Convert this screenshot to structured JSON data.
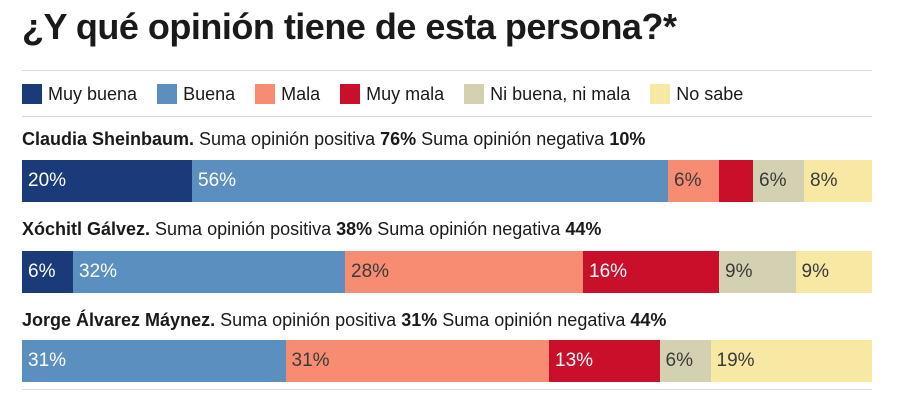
{
  "title": "¿Y qué opinión tiene de esta persona?*",
  "colors": {
    "Muy buena": "#1a3a7a",
    "Buena": "#5b8fc0",
    "Mala": "#f88c73",
    "Muy mala": "#c90f2a",
    "Ni buena, ni mala": "#d3d1b1",
    "No sabe": "#f7e8a4"
  },
  "label_colors": {
    "Muy buena": "#ffffff",
    "Buena": "#ffffff",
    "Mala": "#3a3a3a",
    "Muy mala": "#ffffff",
    "Ni buena, ni mala": "#3a3a3a",
    "No sabe": "#3a3a3a"
  },
  "chart_data": {
    "type": "bar",
    "orientation": "horizontal",
    "stacked": true,
    "title": "¿Y qué opinión tiene de esta persona?*",
    "legend": [
      "Muy buena",
      "Buena",
      "Mala",
      "Muy mala",
      "Ni buena, ni mala",
      "No sabe"
    ],
    "legend_position": "top",
    "rows": [
      {
        "name": "Claudia Sheinbaum.",
        "pos_text": " Suma opinión positiva ",
        "pos_value": "76%",
        "neg_text": " Suma opinión negativa ",
        "neg_value": "10%",
        "segments": [
          {
            "category": "Muy buena",
            "value": 20,
            "label": "20%"
          },
          {
            "category": "Buena",
            "value": 56,
            "label": "56%"
          },
          {
            "category": "Mala",
            "value": 6,
            "label": "6%"
          },
          {
            "category": "Muy mala",
            "value": 4,
            "label": ""
          },
          {
            "category": "Ni buena, ni mala",
            "value": 6,
            "label": "6%"
          },
          {
            "category": "No sabe",
            "value": 8,
            "label": "8%"
          }
        ]
      },
      {
        "name": "Xóchitl Gálvez.",
        "pos_text": " Suma opinión positiva ",
        "pos_value": "38%",
        "neg_text": " Suma opinión negativa ",
        "neg_value": "44%",
        "segments": [
          {
            "category": "Muy buena",
            "value": 6,
            "label": "6%"
          },
          {
            "category": "Buena",
            "value": 32,
            "label": "32%"
          },
          {
            "category": "Mala",
            "value": 28,
            "label": "28%"
          },
          {
            "category": "Muy mala",
            "value": 16,
            "label": "16%"
          },
          {
            "category": "Ni buena, ni mala",
            "value": 9,
            "label": "9%"
          },
          {
            "category": "No sabe",
            "value": 9,
            "label": "9%"
          }
        ]
      },
      {
        "name": "Jorge Álvarez Máynez.",
        "pos_text": " Suma opinión positiva ",
        "pos_value": "31%",
        "neg_text": " Suma opinión negativa ",
        "neg_value": "44%",
        "segments": [
          {
            "category": "Buena",
            "value": 31,
            "label": "31%"
          },
          {
            "category": "Mala",
            "value": 31,
            "label": "31%"
          },
          {
            "category": "Muy mala",
            "value": 13,
            "label": "13%"
          },
          {
            "category": "Ni buena, ni mala",
            "value": 6,
            "label": "6%"
          },
          {
            "category": "No sabe",
            "value": 19,
            "label": "19%"
          }
        ]
      }
    ]
  }
}
